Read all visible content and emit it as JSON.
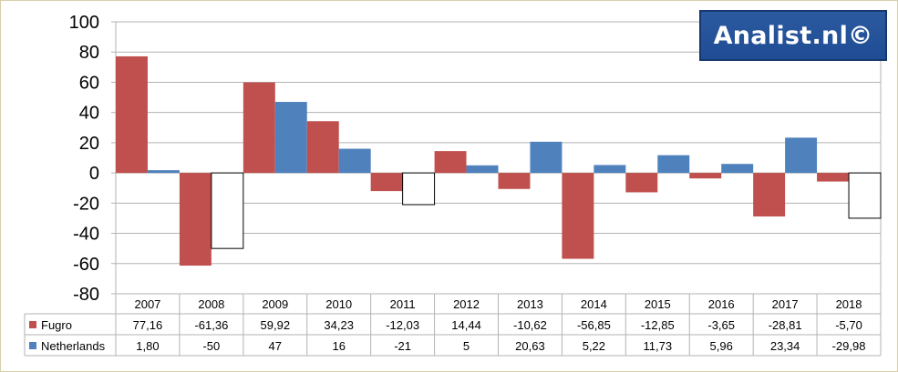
{
  "watermark": {
    "text": "Analist.nl©"
  },
  "chart_data": {
    "type": "bar",
    "categories": [
      "2007",
      "2008",
      "2009",
      "2010",
      "2011",
      "2012",
      "2013",
      "2014",
      "2015",
      "2016",
      "2017",
      "2018"
    ],
    "series": [
      {
        "name": "Fugro",
        "color": "#c0504d",
        "values": [
          77.16,
          -61.36,
          59.92,
          34.23,
          -12.03,
          14.44,
          -10.62,
          -56.85,
          -12.85,
          -3.65,
          -28.81,
          -5.7
        ],
        "labels": [
          "77,16",
          "-61,36",
          "59,92",
          "34,23",
          "-12,03",
          "14,44",
          "-10,62",
          "-56,85",
          "-12,85",
          "-3,65",
          "-28,81",
          "-5,70"
        ]
      },
      {
        "name": "Netherlands",
        "color": "#4f81bd",
        "negative_fill": "#ffffff",
        "values": [
          1.8,
          -50,
          47,
          16,
          -21,
          5,
          20.63,
          5.22,
          11.73,
          5.96,
          23.34,
          -29.98
        ],
        "labels": [
          "1,80",
          "-50",
          "47",
          "16",
          "-21",
          "5",
          "20,63",
          "5,22",
          "11,73",
          "5,96",
          "23,34",
          "-29,98"
        ]
      }
    ],
    "ylim": [
      -80,
      100
    ],
    "yticks": [
      100,
      80,
      60,
      40,
      20,
      0,
      -20,
      -40,
      -60,
      -80
    ],
    "grid": true,
    "legend": "data-table"
  }
}
